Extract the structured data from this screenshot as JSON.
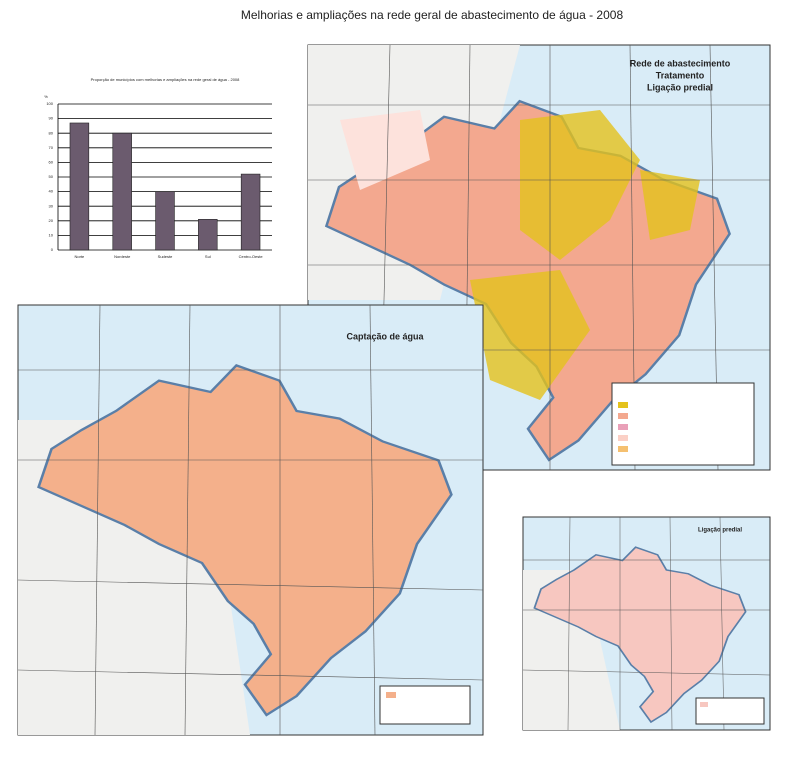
{
  "title": "Melhorias e ampliações na rede geral de abastecimento de água - 2008",
  "chart_data": {
    "type": "bar",
    "title": "Proporção de municípios com melhorias e ampliações na rede geral de água - 2008",
    "y_label": "%",
    "categories": [
      "Norte",
      "Nordeste",
      "Sudeste",
      "Sul",
      "Centro-Oeste"
    ],
    "values": [
      87,
      80,
      40,
      21,
      52
    ],
    "color": "#6b5b6e",
    "ylim": [
      0,
      100
    ],
    "yticks": [
      0,
      10,
      20,
      30,
      40,
      50,
      60,
      70,
      80,
      90,
      100
    ],
    "grid": true
  },
  "maps": [
    {
      "title_lines": [
        "Rede de abastecimento",
        "Tratamento",
        "Ligação predial"
      ]
    },
    {
      "title": "Captação de água"
    },
    {
      "title": "Ligação predial"
    }
  ]
}
